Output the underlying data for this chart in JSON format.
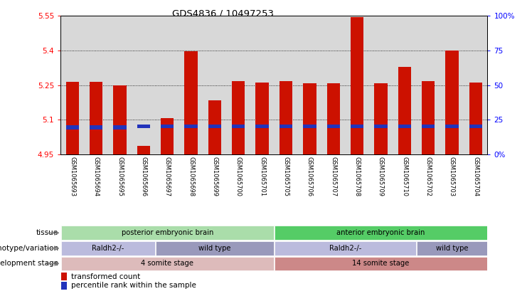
{
  "title": "GDS4836 / 10497253",
  "samples": [
    "GSM1065693",
    "GSM1065694",
    "GSM1065695",
    "GSM1065696",
    "GSM1065697",
    "GSM1065698",
    "GSM1065699",
    "GSM1065700",
    "GSM1065701",
    "GSM1065705",
    "GSM1065706",
    "GSM1065707",
    "GSM1065708",
    "GSM1065709",
    "GSM1065710",
    "GSM1065702",
    "GSM1065703",
    "GSM1065704"
  ],
  "red_values": [
    5.265,
    5.265,
    5.248,
    4.985,
    5.105,
    5.397,
    5.185,
    5.267,
    5.26,
    5.268,
    5.258,
    5.258,
    5.545,
    5.258,
    5.33,
    5.268,
    5.4,
    5.262
  ],
  "blue_bottom": [
    5.057,
    5.057,
    5.057,
    5.063,
    5.063,
    5.062,
    5.062,
    5.062,
    5.062,
    5.062,
    5.062,
    5.062,
    5.062,
    5.062,
    5.062,
    5.062,
    5.062,
    5.062
  ],
  "blue_height": [
    0.019,
    0.019,
    0.019,
    0.015,
    0.015,
    0.018,
    0.018,
    0.018,
    0.018,
    0.018,
    0.018,
    0.018,
    0.018,
    0.018,
    0.018,
    0.018,
    0.018,
    0.018
  ],
  "y_min": 4.95,
  "y_max": 5.55,
  "y_ticks_left": [
    4.95,
    5.1,
    5.25,
    5.4,
    5.55
  ],
  "y_ticks_right_pct": [
    0,
    25,
    50,
    75,
    100
  ],
  "y_ticks_right_labels": [
    "0%",
    "25",
    "50",
    "75",
    "100%"
  ],
  "grid_lines": [
    5.1,
    5.25,
    5.4
  ],
  "bar_color": "#cc1100",
  "blue_color": "#2233bb",
  "plot_bg": "#d8d8d8",
  "annotation_rows": [
    {
      "label": "tissue",
      "segments": [
        {
          "text": "posterior embryonic brain",
          "start": 0,
          "end": 9,
          "color": "#aaddaa"
        },
        {
          "text": "anterior embryonic brain",
          "start": 9,
          "end": 18,
          "color": "#55cc66"
        }
      ]
    },
    {
      "label": "genotype/variation",
      "segments": [
        {
          "text": "Raldh2-/-",
          "start": 0,
          "end": 4,
          "color": "#bbbbdd"
        },
        {
          "text": "wild type",
          "start": 4,
          "end": 9,
          "color": "#9999bb"
        },
        {
          "text": "Raldh2-/-",
          "start": 9,
          "end": 15,
          "color": "#bbbbdd"
        },
        {
          "text": "wild type",
          "start": 15,
          "end": 18,
          "color": "#9999bb"
        }
      ]
    },
    {
      "label": "development stage",
      "segments": [
        {
          "text": "4 somite stage",
          "start": 0,
          "end": 9,
          "color": "#ddbbbb"
        },
        {
          "text": "14 somite stage",
          "start": 9,
          "end": 18,
          "color": "#cc8888"
        }
      ]
    }
  ]
}
